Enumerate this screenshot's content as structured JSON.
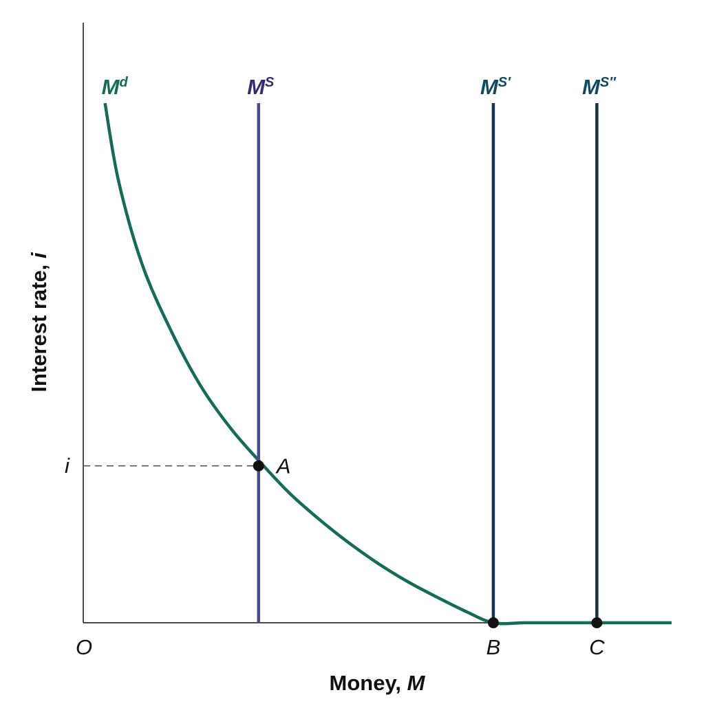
{
  "chart_data": {
    "type": "line",
    "xlabel": "Money, M",
    "xlabel_text": "Money, ",
    "xlabel_var": "M",
    "ylabel": "Interest rate, i",
    "ylabel_text": "Interest rate, ",
    "ylabel_var": "i",
    "origin_label": "O",
    "interest_level_label": "i",
    "xlim": [
      0,
      1
    ],
    "ylim": [
      0,
      1
    ],
    "series": [
      {
        "name": "Md",
        "label_base": "M",
        "label_sup": "d",
        "color": "#136b58",
        "kind": "demand-curve",
        "x": [
          0.037,
          0.06,
          0.1,
          0.15,
          0.2,
          0.25,
          0.3,
          0.35,
          0.4,
          0.45,
          0.5,
          0.55,
          0.6,
          0.65,
          0.697,
          0.75,
          0.8,
          0.85,
          0.9,
          1.0
        ],
        "y": [
          1.0,
          0.85,
          0.69,
          0.56,
          0.455,
          0.375,
          0.31,
          0.25,
          0.2,
          0.155,
          0.115,
          0.08,
          0.05,
          0.022,
          0.0,
          0.0,
          0.0,
          0.0,
          0.0,
          0.0
        ]
      },
      {
        "name": "MS",
        "label_base": "M",
        "label_sup": "S",
        "color": "#4c4a8f",
        "kind": "supply-line",
        "x": 0.298
      },
      {
        "name": "MS'",
        "label_base": "M",
        "label_sup": "S′",
        "color": "#1b3150",
        "kind": "supply-line",
        "x": 0.697
      },
      {
        "name": "MS''",
        "label_base": "M",
        "label_sup": "S″",
        "color": "#1b3150",
        "kind": "supply-line",
        "x": 0.873
      }
    ],
    "points": [
      {
        "label": "A",
        "x": 0.298,
        "y": 0.302
      },
      {
        "label": "B",
        "x": 0.697,
        "y": 0.0
      },
      {
        "label": "C",
        "x": 0.873,
        "y": 0.0
      }
    ],
    "label_colors": {
      "Md": "#136b58",
      "MS": "#2f2d77",
      "MS'": "#0f4a62",
      "MS''": "#0f4a62"
    }
  }
}
